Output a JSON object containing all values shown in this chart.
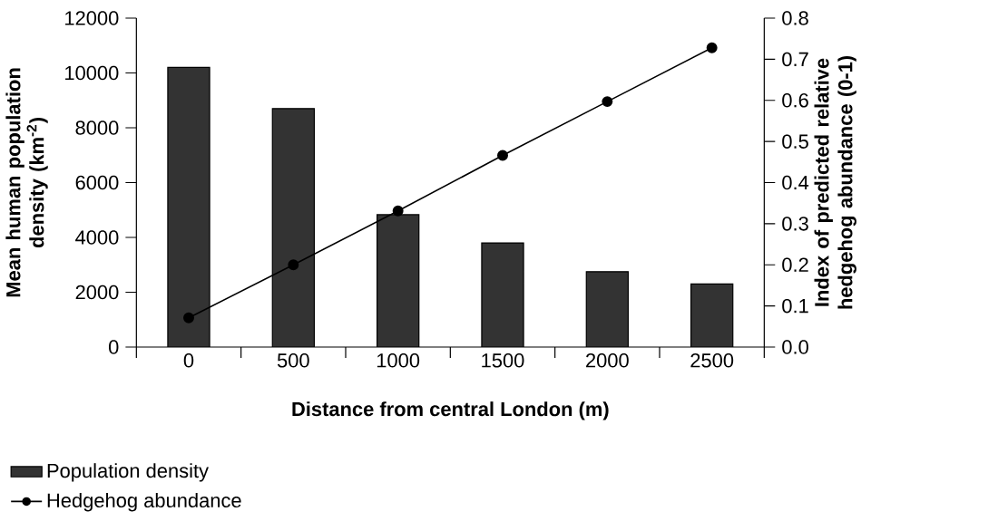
{
  "chart_data": {
    "type": "bar",
    "xlabel": "Distance from central London (m)",
    "ylabel": "Mean human population density (km$^{-2}$)",
    "y2label": "Index of predicted relative hedgehog abundance (0-1)",
    "categories": [
      "0",
      "500",
      "1000",
      "1500",
      "2000",
      "2500"
    ],
    "series": [
      {
        "name": "Population density",
        "color": "#333333",
        "values": [
          10200,
          8700,
          4830,
          3800,
          2750,
          2300
        ]
      },
      {
        "name": "Hedgehog abundance",
        "type": "line",
        "axis": "y2",
        "color": "#000000",
        "marker": "circle",
        "values": [
          0.071,
          0.2,
          0.331,
          0.466,
          0.597,
          0.728
        ]
      }
    ],
    "ylim": [
      0,
      12000
    ],
    "yticks": [
      0,
      2000,
      4000,
      6000,
      8000,
      10000,
      12000
    ],
    "y2lim": [
      0,
      0.8
    ],
    "y2ticks": [
      {
        "value": 0,
        "label": "0.0"
      },
      {
        "value": 0.1,
        "label": "0.1"
      },
      {
        "value": 0.2,
        "label": "0.2"
      },
      {
        "value": 0.3,
        "label": "0.3"
      },
      {
        "value": 0.4,
        "label": "0.4"
      },
      {
        "value": 0.5,
        "label": "0.5"
      },
      {
        "value": 0.6,
        "label": "0.6"
      },
      {
        "value": 0.7,
        "label": "0.7"
      },
      {
        "value": 0.8,
        "label": "0.8"
      }
    ],
    "grid": false,
    "legend": "bottom left"
  }
}
